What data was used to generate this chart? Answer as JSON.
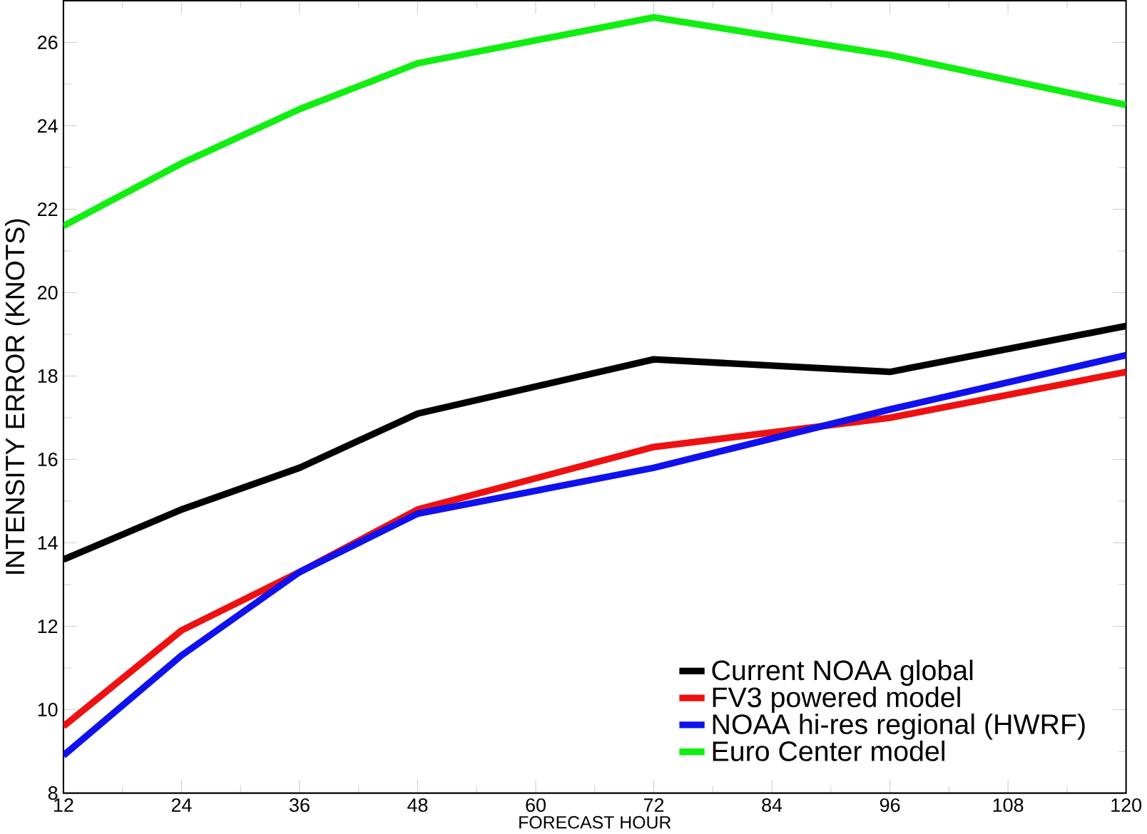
{
  "chart_data": {
    "type": "line",
    "xlabel": "FORECAST HOUR",
    "ylabel": "INTENSITY ERROR (KNOTS)",
    "x": [
      12,
      24,
      36,
      48,
      72,
      96,
      120
    ],
    "series": [
      {
        "name": "Current NOAA global",
        "color": "#000000",
        "values": [
          13.6,
          14.8,
          15.8,
          17.1,
          18.4,
          18.1,
          19.2
        ]
      },
      {
        "name": "FV3 powered model",
        "color": "#ee1111",
        "values": [
          9.6,
          11.9,
          13.3,
          14.8,
          16.3,
          17.0,
          18.1
        ]
      },
      {
        "name": "NOAA hi-res regional (HWRF)",
        "color": "#1111ee",
        "values": [
          8.9,
          11.3,
          13.3,
          14.7,
          15.8,
          17.2,
          18.5
        ]
      },
      {
        "name": "Euro Center model",
        "color": "#11ee11",
        "values": [
          21.6,
          23.1,
          24.4,
          25.5,
          26.6,
          25.7,
          24.5
        ]
      }
    ],
    "xlim": [
      12,
      120
    ],
    "ylim": [
      8,
      27
    ],
    "xticks": [
      12,
      24,
      36,
      48,
      60,
      72,
      84,
      96,
      108,
      120
    ],
    "yticks": [
      8,
      10,
      12,
      14,
      16,
      18,
      20,
      22,
      24,
      26
    ],
    "legend": "bottom right",
    "grid": false,
    "marker": "none",
    "line_style": "solid"
  }
}
